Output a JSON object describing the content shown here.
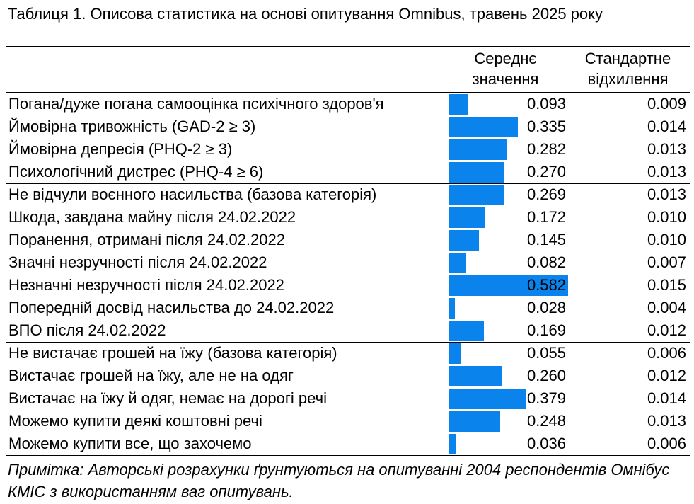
{
  "title": "Таблиця 1. Описова статистика на основі опитування Omnibus, травень 2025 року",
  "columns": {
    "mean_line1": "Середнє",
    "mean_line2": "значення",
    "sd_line1": "Стандартне",
    "sd_line2": "відхилення"
  },
  "note": "Примітка: Авторські розрахунки ґрунтуються на опитуванні 2004 респондентів Омнібус КМІС з використанням ваг опитувань.",
  "colors": {
    "bar": "#0a84ec"
  },
  "chart_data": {
    "type": "table",
    "bar_scale_max": 0.582,
    "columns": [
      "Середнє значення",
      "Стандартне відхилення"
    ],
    "groups": [
      {
        "rows": [
          {
            "label": "Погана/дуже погана самооцінка психічного здоров'я",
            "mean": 0.093,
            "mean_text": "0.093",
            "sd": "0.009"
          },
          {
            "label": "Ймовірна тривожність (GAD-2 ≥ 3)",
            "mean": 0.335,
            "mean_text": "0.335",
            "sd": "0.014"
          },
          {
            "label": "Ймовірна депресія (PHQ-2 ≥ 3)",
            "mean": 0.282,
            "mean_text": "0.282",
            "sd": "0.013"
          },
          {
            "label": "Психологічний дистрес (PHQ-4 ≥ 6)",
            "mean": 0.27,
            "mean_text": "0.270",
            "sd": "0.013"
          }
        ]
      },
      {
        "rows": [
          {
            "label": "Не відчули воєнного насильства (базова категорія)",
            "mean": 0.269,
            "mean_text": "0.269",
            "sd": "0.013"
          },
          {
            "label": "Шкода, завдана майну після 24.02.2022",
            "mean": 0.172,
            "mean_text": "0.172",
            "sd": "0.010"
          },
          {
            "label": "Поранення, отримані після 24.02.2022",
            "mean": 0.145,
            "mean_text": "0.145",
            "sd": "0.010"
          },
          {
            "label": "Значні незручності після 24.02.2022",
            "mean": 0.082,
            "mean_text": "0.082",
            "sd": "0.007"
          },
          {
            "label": "Незначні незручності після 24.02.2022",
            "mean": 0.582,
            "mean_text": "0.582",
            "sd": "0.015"
          },
          {
            "label": "Попередній досвід насильства до 24.02.2022",
            "mean": 0.028,
            "mean_text": "0.028",
            "sd": "0.004"
          },
          {
            "label": "ВПО після 24.02.2022",
            "mean": 0.169,
            "mean_text": "0.169",
            "sd": "0.012"
          }
        ]
      },
      {
        "rows": [
          {
            "label": "Не вистачає грошей на їжу (базова категорія)",
            "mean": 0.055,
            "mean_text": "0.055",
            "sd": "0.006"
          },
          {
            "label": "Вистачає грошей на їжу, але не на одяг",
            "mean": 0.26,
            "mean_text": "0.260",
            "sd": "0.012"
          },
          {
            "label": "Вистачає на їжу й одяг, немає на дорогі речі",
            "mean": 0.379,
            "mean_text": "0.379",
            "sd": "0.014"
          },
          {
            "label": "Можемо купити деякі коштовні речі",
            "mean": 0.248,
            "mean_text": "0.248",
            "sd": "0.013"
          },
          {
            "label": "Можемо купити все, що захочемо",
            "mean": 0.036,
            "mean_text": "0.036",
            "sd": "0.006"
          }
        ]
      }
    ]
  }
}
